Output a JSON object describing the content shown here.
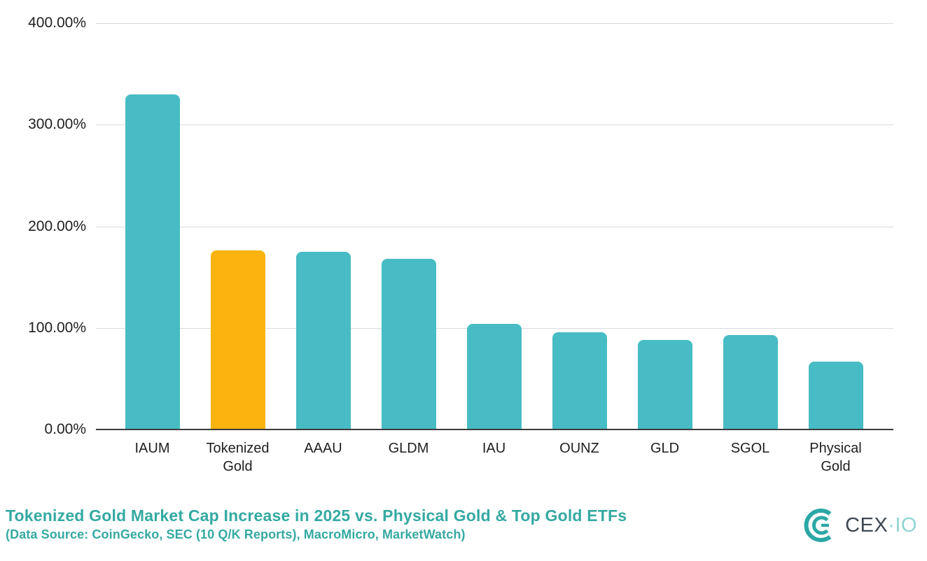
{
  "chart_data": {
    "type": "bar",
    "title": "Tokenized Gold Market Cap Increase in 2025 vs. Physical Gold & Top Gold ETFs",
    "subtitle": "(Data Source: CoinGecko, SEC (10 Q/K Reports), MacroMicro, MarketWatch)",
    "categories": [
      "IAUM",
      "Tokenized Gold",
      "AAAU",
      "GLDM",
      "IAU",
      "OUNZ",
      "GLD",
      "SGOL",
      "Physical Gold"
    ],
    "values": [
      330,
      176,
      175,
      168,
      104,
      96,
      88,
      93,
      67
    ],
    "value_unit": "%",
    "highlight_category": "Tokenized Gold",
    "bar_color": "#47BCC4",
    "highlight_color": "#FBB40D",
    "y_ticks": [
      {
        "value": 400,
        "label": "400.00%"
      },
      {
        "value": 300,
        "label": "300.00%"
      },
      {
        "value": 200,
        "label": "200.00%"
      },
      {
        "value": 100,
        "label": "100.00%"
      },
      {
        "value": 0,
        "label": "0.00%"
      }
    ],
    "ylim": [
      0,
      400
    ],
    "grid": true,
    "legend_position": "none",
    "xlabel": "",
    "ylabel": ""
  },
  "footer": {
    "title": "Tokenized Gold Market Cap Increase in 2025 vs. Physical Gold & Top Gold ETFs",
    "subtitle": "(Data Source: CoinGecko, SEC (10 Q/K Reports), MacroMicro, MarketWatch)",
    "accent_color": "#35A9A2"
  },
  "logo": {
    "text_primary": "CEX",
    "text_separator": "·",
    "text_secondary": "IO",
    "primary_color": "#3E4852",
    "secondary_color": "#8FD3D5",
    "icon_color": "#2BA8A6"
  }
}
